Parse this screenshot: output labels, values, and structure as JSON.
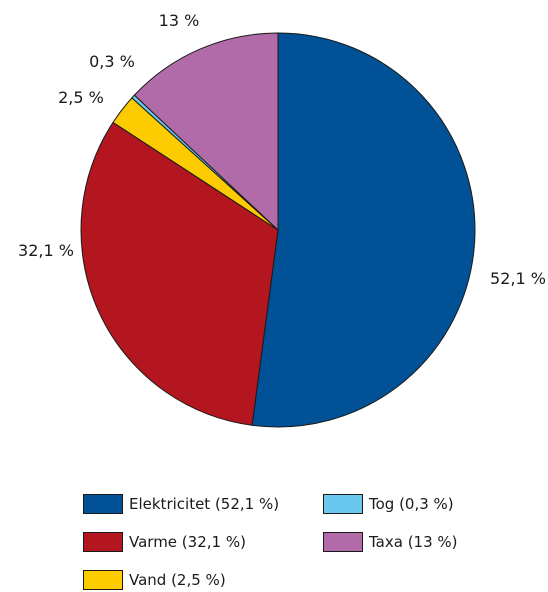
{
  "chart_data": {
    "type": "pie",
    "slices": [
      {
        "name": "Elektricitet",
        "value": 52.1,
        "label": "52,1 %",
        "legend": "Elektricitet  (52,1 %)",
        "color": "#005195"
      },
      {
        "name": "Varme",
        "value": 32.1,
        "label": "32,1 %",
        "legend": "Varme  (32,1 %)",
        "color": "#b3161f"
      },
      {
        "name": "Vand",
        "value": 2.5,
        "label": "2,5 %",
        "legend": "Vand (2,5 %)",
        "color": "#fccc00"
      },
      {
        "name": "Tog",
        "value": 0.3,
        "label": "0,3 %",
        "legend": "Tog  (0,3 %)",
        "color": "#6ac8ef"
      },
      {
        "name": "Taxa",
        "value": 13,
        "label": "13 %",
        "legend": "Taxa  (13 %)",
        "color": "#b26ba9"
      }
    ],
    "start": "12 o'clock",
    "direction": "clockwise"
  }
}
